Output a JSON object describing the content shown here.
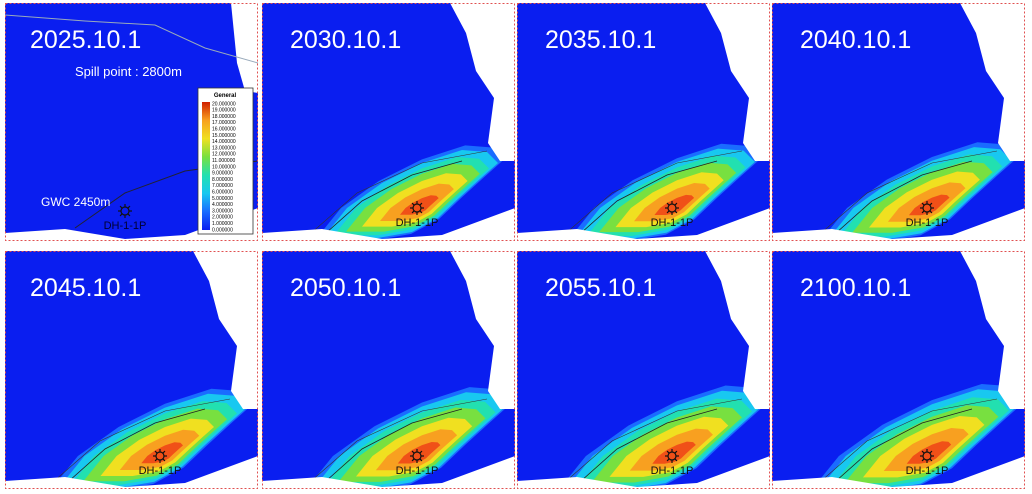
{
  "panels": [
    {
      "date": "2025.10.1",
      "well": "DH-1-1P",
      "spill_point": "Spill point : 2800m",
      "gwc": "GWC 2450m"
    },
    {
      "date": "2030.10.1",
      "well": "DH-1-1P"
    },
    {
      "date": "2035.10.1",
      "well": "DH-1-1P"
    },
    {
      "date": "2040.10.1",
      "well": "DH-1-1P"
    },
    {
      "date": "2045.10.1",
      "well": "DH-1-1P"
    },
    {
      "date": "2050.10.1",
      "well": "DH-1-1P"
    },
    {
      "date": "2055.10.1",
      "well": "DH-1-1P"
    },
    {
      "date": "2100.10.1",
      "well": "DH-1-1P"
    }
  ],
  "legend": {
    "title": "General",
    "labels": [
      "20.000000",
      "19.000000",
      "18.000000",
      "17.000000",
      "16.000000",
      "15.000000",
      "14.000000",
      "13.000000",
      "12.000000",
      "11.000000",
      "10.000000",
      "9.000000",
      "8.000000",
      "7.000000",
      "6.000000",
      "5.000000",
      "4.000000",
      "3.000000",
      "2.000000",
      "1.000000",
      "0.000000"
    ]
  }
}
